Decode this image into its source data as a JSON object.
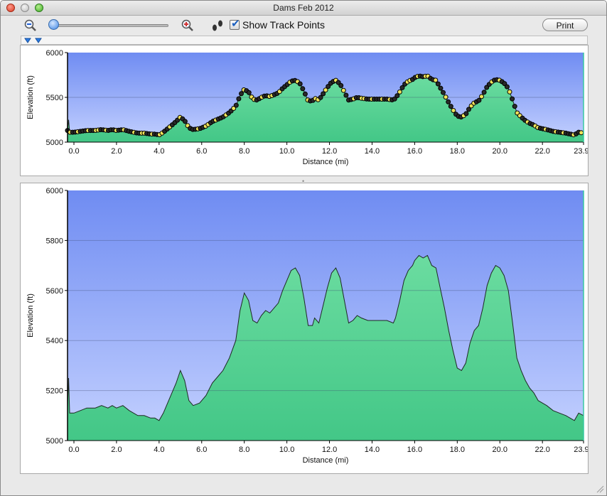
{
  "window": {
    "title": "Dams Feb 2012"
  },
  "toolbar": {
    "show_track_points_label": "Show Track Points",
    "show_track_points_checked": true,
    "print_label": "Print",
    "icons": [
      "zoom-out-icon",
      "zoom-slider",
      "zoom-in-icon",
      "footprints-icon"
    ]
  },
  "colors": {
    "sky_top": "#6f8cf2",
    "sky_bottom": "#c4d1ff",
    "fill_top": "#6bdca0",
    "fill_bottom": "#43c787",
    "line": "#1e2a22",
    "trackpoint_fill": "#f0e35a"
  },
  "chart_data": [
    {
      "type": "area",
      "panel": "overview",
      "xlabel": "Distance   (mi)",
      "ylabel": "Elevation (ft)",
      "xlim": [
        -0.3,
        23.93
      ],
      "ylim": [
        5000,
        6000
      ],
      "xticks": [
        "0.0",
        "2.0",
        "4.0",
        "6.0",
        "8.0",
        "10.0",
        "12.0",
        "14.0",
        "16.0",
        "18.0",
        "20.0",
        "22.0",
        "23.93"
      ],
      "yticks": [
        "5000",
        "5500",
        "6000"
      ],
      "grid": true,
      "track_points_shown": true
    },
    {
      "type": "area",
      "panel": "detail",
      "xlabel": "Distance   (mi)",
      "ylabel": "Elevation (ft)",
      "xlim": [
        -0.3,
        23.93
      ],
      "ylim": [
        5000,
        6000
      ],
      "xticks": [
        "0.0",
        "2.0",
        "4.0",
        "6.0",
        "8.0",
        "10.0",
        "12.0",
        "14.0",
        "16.0",
        "18.0",
        "20.0",
        "22.0",
        "23.93"
      ],
      "yticks": [
        "5000",
        "5200",
        "5400",
        "5600",
        "5800",
        "6000"
      ],
      "grid": true,
      "series": [
        {
          "x": [
            -0.3,
            -0.25,
            -0.2,
            -0.1,
            0.0,
            0.3,
            0.6,
            1.0,
            1.3,
            1.6,
            1.8,
            2.0,
            2.3,
            2.6,
            3.0,
            3.3,
            3.6,
            3.8,
            4.0,
            4.2,
            4.4,
            4.6,
            4.8,
            5.0,
            5.2,
            5.4,
            5.6,
            5.9,
            6.2,
            6.5,
            6.8,
            7.0,
            7.3,
            7.6,
            7.8,
            8.0,
            8.2,
            8.4,
            8.6,
            8.8,
            9.0,
            9.2,
            9.4,
            9.6,
            9.8,
            10.0,
            10.2,
            10.4,
            10.6,
            10.8,
            11.0,
            11.2,
            11.3,
            11.5,
            11.7,
            11.9,
            12.1,
            12.3,
            12.5,
            12.7,
            12.9,
            13.1,
            13.3,
            13.5,
            13.8,
            14.1,
            14.4,
            14.7,
            15.0,
            15.1,
            15.3,
            15.5,
            15.7,
            15.9,
            16.0,
            16.2,
            16.4,
            16.6,
            16.8,
            17.0,
            17.2,
            17.4,
            17.6,
            17.8,
            18.0,
            18.2,
            18.4,
            18.6,
            18.8,
            19.0,
            19.2,
            19.4,
            19.6,
            19.8,
            20.0,
            20.2,
            20.4,
            20.6,
            20.8,
            21.0,
            21.2,
            21.4,
            21.6,
            21.8,
            22.0,
            22.2,
            22.5,
            22.8,
            23.1,
            23.3,
            23.5,
            23.7,
            23.93
          ],
          "y": [
            5130,
            5250,
            5110,
            5110,
            5110,
            5120,
            5130,
            5130,
            5140,
            5130,
            5140,
            5130,
            5140,
            5120,
            5100,
            5100,
            5090,
            5090,
            5080,
            5110,
            5150,
            5190,
            5230,
            5280,
            5240,
            5160,
            5140,
            5150,
            5180,
            5230,
            5260,
            5280,
            5330,
            5400,
            5520,
            5590,
            5560,
            5480,
            5470,
            5500,
            5520,
            5510,
            5530,
            5550,
            5600,
            5640,
            5680,
            5690,
            5660,
            5570,
            5460,
            5460,
            5490,
            5470,
            5540,
            5610,
            5670,
            5690,
            5650,
            5560,
            5470,
            5480,
            5500,
            5490,
            5480,
            5480,
            5480,
            5480,
            5470,
            5490,
            5560,
            5640,
            5680,
            5700,
            5720,
            5740,
            5730,
            5740,
            5700,
            5690,
            5610,
            5530,
            5440,
            5360,
            5290,
            5280,
            5310,
            5390,
            5440,
            5460,
            5530,
            5620,
            5670,
            5700,
            5690,
            5660,
            5600,
            5470,
            5330,
            5280,
            5240,
            5210,
            5190,
            5160,
            5150,
            5140,
            5120,
            5110,
            5100,
            5090,
            5080,
            5110,
            5100
          ]
        }
      ]
    }
  ]
}
